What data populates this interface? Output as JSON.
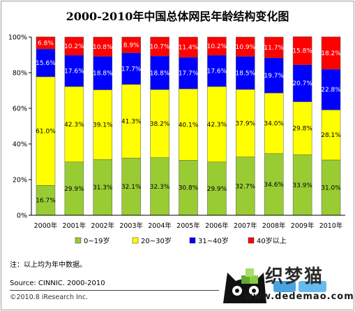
{
  "chart_data": {
    "type": "bar",
    "stacked": true,
    "title": "2000-2010年中国总体网民年龄结构变化图",
    "categories": [
      "2000年",
      "2001年",
      "2002年",
      "2003年",
      "2004年",
      "2005年",
      "2006年",
      "2007年",
      "2008年",
      "2009年",
      "2010年"
    ],
    "series": [
      {
        "name": "0~19岁",
        "color": "#99cc33",
        "values": [
          16.7,
          29.9,
          31.3,
          32.1,
          32.3,
          30.8,
          29.9,
          32.7,
          34.6,
          33.9,
          31.0
        ]
      },
      {
        "name": "20~30岁",
        "color": "#ffff00",
        "values": [
          61.0,
          42.3,
          39.1,
          41.3,
          38.2,
          40.1,
          42.3,
          37.9,
          34.0,
          29.8,
          28.1
        ]
      },
      {
        "name": "31~40岁",
        "color": "#0000ff",
        "values": [
          15.6,
          17.6,
          18.8,
          17.7,
          18.8,
          17.7,
          17.6,
          18.5,
          19.7,
          20.7,
          22.8
        ]
      },
      {
        "name": "40岁以上",
        "color": "#ff0000",
        "values": [
          6.8,
          10.2,
          10.8,
          8.9,
          10.7,
          11.4,
          10.2,
          10.9,
          11.7,
          15.8,
          18.2
        ]
      }
    ],
    "y_ticks": [
      "0%",
      "20%",
      "40%",
      "60%",
      "80%",
      "100%"
    ],
    "ylim": [
      0,
      100
    ],
    "legend_position": "bottom",
    "grid": false
  },
  "note": "注：以上均为年中数据。",
  "source": "Source: CINNIC. 2000-2010",
  "copyright": "©2010.8 iResearch Inc.",
  "watermark": {
    "brand": "织梦猫",
    "url": "www.dedemao.com"
  }
}
